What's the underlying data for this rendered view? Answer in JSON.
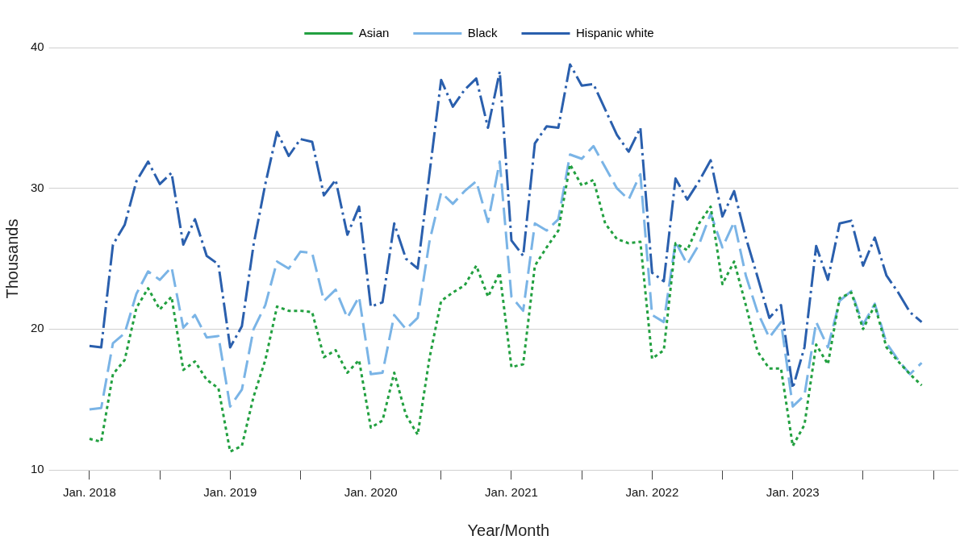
{
  "chart_data": {
    "type": "line",
    "xlabel": "Year/Month",
    "ylabel": "Thousands",
    "legend": "top",
    "grid": "y",
    "marker": "none",
    "x": [
      "2018-01",
      "2018-02",
      "2018-03",
      "2018-04",
      "2018-05",
      "2018-06",
      "2018-07",
      "2018-08",
      "2018-09",
      "2018-10",
      "2018-11",
      "2018-12",
      "2019-01",
      "2019-02",
      "2019-03",
      "2019-04",
      "2019-05",
      "2019-06",
      "2019-07",
      "2019-08",
      "2019-09",
      "2019-10",
      "2019-11",
      "2019-12",
      "2020-01",
      "2020-02",
      "2020-03",
      "2020-04",
      "2020-05",
      "2020-06",
      "2020-07",
      "2020-08",
      "2020-09",
      "2020-10",
      "2020-11",
      "2020-12",
      "2021-01",
      "2021-02",
      "2021-03",
      "2021-04",
      "2021-05",
      "2021-06",
      "2021-07",
      "2021-08",
      "2021-09",
      "2021-10",
      "2021-11",
      "2021-12",
      "2022-01",
      "2022-02",
      "2022-03",
      "2022-04",
      "2022-05",
      "2022-06",
      "2022-07",
      "2022-08",
      "2022-09",
      "2022-10",
      "2022-11",
      "2022-12",
      "2023-01",
      "2023-02",
      "2023-03",
      "2023-04",
      "2023-05",
      "2023-06",
      "2023-07",
      "2023-08",
      "2023-09",
      "2023-10",
      "2023-11",
      "2023-12"
    ],
    "xlim": [
      "2017-10-12",
      "2024-03-05"
    ],
    "xticks": [
      {
        "value": "2018-01",
        "label": "Jan. 2018"
      },
      {
        "value": "2018-07",
        "label": null
      },
      {
        "value": "2019-01",
        "label": "Jan. 2019"
      },
      {
        "value": "2019-07",
        "label": null
      },
      {
        "value": "2020-01",
        "label": "Jan. 2020"
      },
      {
        "value": "2020-07",
        "label": null
      },
      {
        "value": "2021-01",
        "label": "Jan. 2021"
      },
      {
        "value": "2021-07",
        "label": null
      },
      {
        "value": "2022-01",
        "label": "Jan. 2022"
      },
      {
        "value": "2022-07",
        "label": null
      },
      {
        "value": "2023-01",
        "label": "Jan. 2023"
      },
      {
        "value": "2023-07",
        "label": null
      },
      {
        "value": "2024-01",
        "label": null
      }
    ],
    "ylim": [
      10,
      40
    ],
    "yticks": [
      10,
      20,
      30,
      40
    ],
    "series": [
      {
        "name": "Asian",
        "color": "#22a040",
        "line_style": "dotted",
        "values": [
          12.2,
          12,
          16.8,
          17.8,
          21.5,
          22.9,
          21.4,
          22.3,
          17.1,
          17.7,
          16.4,
          15.8,
          11.3,
          11.7,
          15.2,
          17.8,
          21.6,
          21.3,
          21.3,
          21.2,
          18,
          18.5,
          16.9,
          17.8,
          13,
          13.5,
          16.9,
          13.9,
          12.5,
          17.9,
          22,
          22.6,
          23.1,
          24.5,
          22.3,
          24,
          17.3,
          17.5,
          24.5,
          25.8,
          27,
          31.7,
          30.2,
          30.6,
          27.5,
          26.4,
          26.1,
          26.2,
          17.9,
          18.5,
          26.1,
          25.6,
          27.5,
          28.7,
          23.2,
          24.8,
          21.7,
          18.4,
          17.2,
          17.2,
          11.7,
          13.2,
          18.9,
          17.5,
          22.2,
          22.6,
          20,
          21.7,
          18.7,
          17.7,
          16.8,
          16
        ]
      },
      {
        "name": "Black",
        "color": "#7ab4e6",
        "line_style": "dashed",
        "values": [
          14.3,
          14.4,
          19,
          19.7,
          22.5,
          24.1,
          23.5,
          24.4,
          20.1,
          21,
          19.4,
          19.5,
          14.5,
          15.7,
          20,
          21.7,
          24.8,
          24.3,
          25.5,
          25.4,
          22,
          22.8,
          20.8,
          22.3,
          16.8,
          16.9,
          21,
          20,
          20.8,
          26.2,
          29.7,
          28.9,
          29.8,
          30.5,
          27.6,
          31.9,
          22.3,
          21.3,
          27.5,
          27,
          27.8,
          32.4,
          32.1,
          33,
          31.5,
          30,
          29.2,
          31,
          21,
          20.5,
          26.2,
          24.6,
          26,
          28.2,
          25.8,
          27.6,
          23.8,
          21.2,
          19.4,
          20.5,
          14.5,
          15.3,
          20.5,
          18.7,
          22,
          22.7,
          20.3,
          21.8,
          19,
          17.8,
          16.8,
          17.6
        ]
      },
      {
        "name": "Hispanic white",
        "color": "#2a5fad",
        "line_style": "dashdot",
        "values": [
          18.8,
          18.7,
          26,
          27.4,
          30.5,
          31.9,
          30.3,
          31.1,
          26,
          27.8,
          25.2,
          24.6,
          18.7,
          20.2,
          26,
          30.3,
          34,
          32.3,
          33.5,
          33.3,
          29.5,
          30.6,
          26.7,
          28.7,
          21.6,
          21.9,
          27.5,
          25,
          24.3,
          31,
          37.7,
          35.8,
          37,
          37.8,
          34.3,
          38.3,
          26.3,
          25.2,
          33.2,
          34.4,
          34.3,
          38.8,
          37.3,
          37.4,
          35.6,
          33.8,
          32.6,
          34.3,
          24,
          23.4,
          30.7,
          29.2,
          30.5,
          32,
          28,
          29.8,
          26.5,
          23.7,
          20.8,
          21.7,
          15.8,
          18.7,
          25.9,
          23.5,
          27.5,
          27.7,
          24.5,
          26.5,
          23.8,
          22.6,
          21.2,
          20.5
        ]
      }
    ]
  }
}
